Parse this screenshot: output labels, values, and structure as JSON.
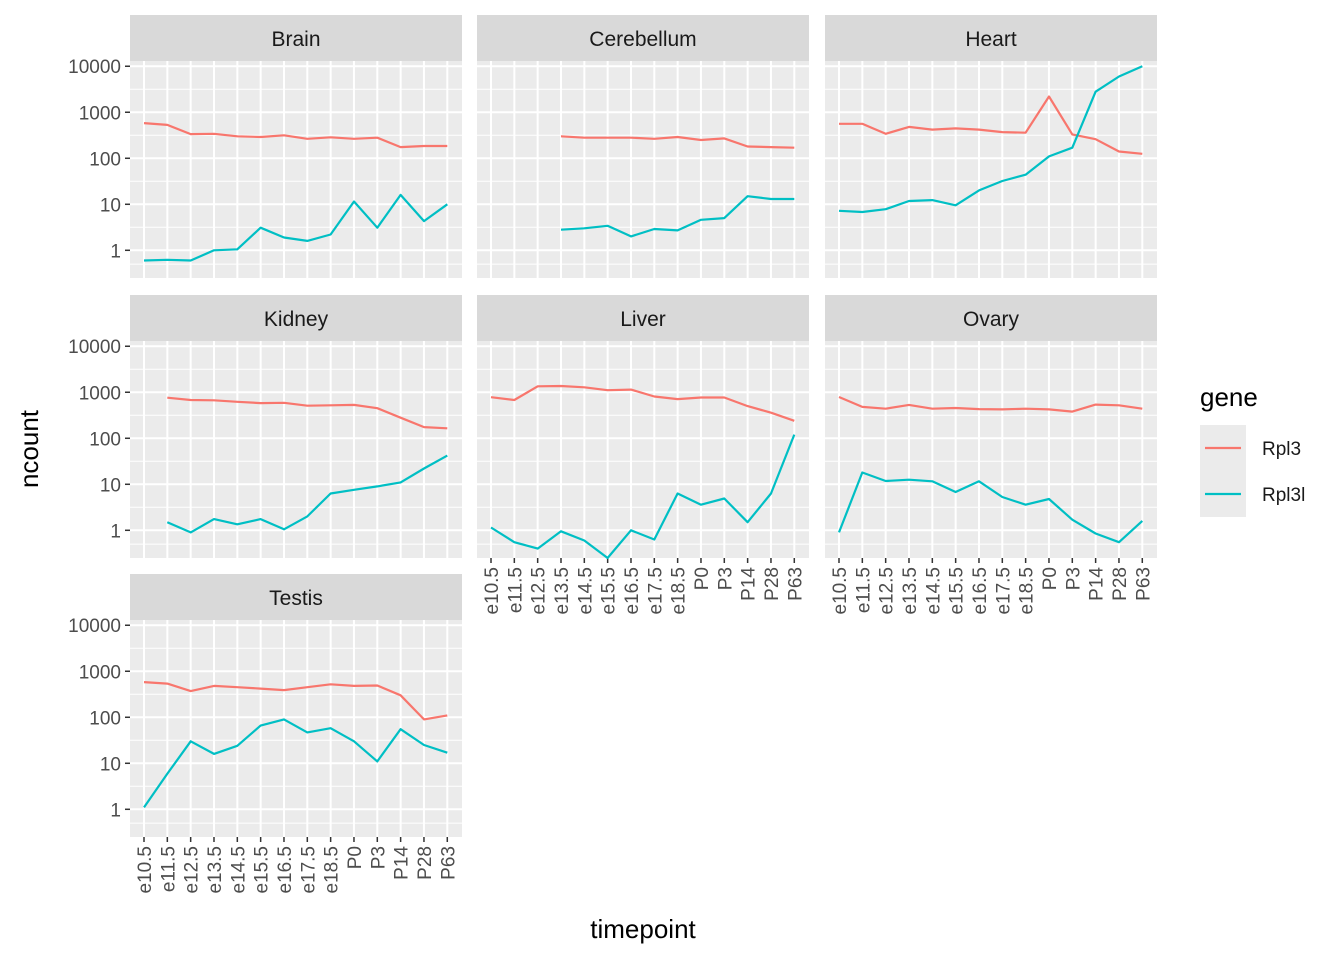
{
  "chart_data": {
    "type": "line",
    "facet_by": "tissue",
    "layout": "3 columns x 3 rows, shared axes",
    "xlabel": "timepoint",
    "ylabel": "ncount",
    "y_scale": "log10",
    "ylim": [
      0.25,
      13000
    ],
    "y_ticks": [
      1,
      10,
      100,
      1000,
      10000
    ],
    "y_tick_labels": [
      "1",
      "10",
      "100",
      "1000",
      "10000"
    ],
    "categories": [
      "e10.5",
      "e11.5",
      "e12.5",
      "e13.5",
      "e14.5",
      "e15.5",
      "e16.5",
      "e17.5",
      "e18.5",
      "P0",
      "P3",
      "P14",
      "P28",
      "P63"
    ],
    "grid": true,
    "legend": {
      "title": "gene",
      "position": "right",
      "entries": [
        {
          "name": "Rpl3",
          "color": "#F8766D"
        },
        {
          "name": "Rpl3l",
          "color": "#00BFC4"
        }
      ]
    },
    "panels": [
      {
        "title": "Brain",
        "series": [
          {
            "name": "Rpl3",
            "values": [
              580,
              530,
              335,
              340,
              300,
              290,
              315,
              265,
              285,
              265,
              280,
              175,
              185,
              185
            ]
          },
          {
            "name": "Rpl3l",
            "values": [
              0.6,
              0.62,
              0.6,
              1,
              1.05,
              3.1,
              1.9,
              1.6,
              2.2,
              11.5,
              3.1,
              16,
              4.3,
              10
            ]
          }
        ]
      },
      {
        "title": "Cerebellum",
        "series": [
          {
            "name": "Rpl3",
            "values": [
              null,
              null,
              null,
              300,
              280,
              280,
              280,
              265,
              290,
              250,
              270,
              180,
              175,
              170
            ]
          },
          {
            "name": "Rpl3l",
            "values": [
              null,
              null,
              null,
              2.8,
              3.0,
              3.4,
              2.0,
              2.9,
              2.7,
              4.6,
              5.0,
              15,
              13,
              13
            ]
          }
        ]
      },
      {
        "title": "Heart",
        "series": [
          {
            "name": "Rpl3",
            "values": [
              560,
              560,
              340,
              480,
              420,
              445,
              420,
              370,
              360,
              2200,
              330,
              260,
              140,
              125
            ]
          },
          {
            "name": "Rpl3l",
            "values": [
              7.2,
              6.8,
              7.8,
              11.8,
              12.3,
              9.5,
              20,
              32,
              44,
              110,
              170,
              2800,
              6000,
              10000
            ]
          }
        ]
      },
      {
        "title": "Kidney",
        "series": [
          {
            "name": "Rpl3",
            "values": [
              null,
              760,
              680,
              670,
              620,
              580,
              590,
              510,
              520,
              530,
              450,
              280,
              175,
              165
            ]
          },
          {
            "name": "Rpl3l",
            "values": [
              null,
              1.5,
              0.9,
              1.75,
              1.35,
              1.75,
              1.05,
              2,
              6.3,
              7.6,
              9,
              11,
              22,
              42
            ]
          }
        ]
      },
      {
        "title": "Liver",
        "series": [
          {
            "name": "Rpl3",
            "values": [
              780,
              680,
              1350,
              1370,
              1280,
              1110,
              1140,
              810,
              710,
              770,
              770,
              500,
              360,
              240
            ]
          },
          {
            "name": "Rpl3l",
            "values": [
              1.15,
              0.55,
              0.4,
              0.95,
              0.6,
              0.25,
              1.0,
              0.63,
              6.3,
              3.6,
              4.9,
              1.5,
              6.3,
              120
            ]
          }
        ]
      },
      {
        "title": "Ovary",
        "series": [
          {
            "name": "Rpl3",
            "values": [
              790,
              480,
              440,
              530,
              440,
              455,
              430,
              425,
              440,
              425,
              380,
              540,
              520,
              440
            ]
          },
          {
            "name": "Rpl3l",
            "values": [
              0.9,
              18,
              11.8,
              12.6,
              11.6,
              6.8,
              11.6,
              5.3,
              3.6,
              4.8,
              1.7,
              0.85,
              0.55,
              1.6
            ]
          }
        ]
      },
      {
        "title": "Testis",
        "series": [
          {
            "name": "Rpl3",
            "values": [
              580,
              540,
              370,
              480,
              450,
              420,
              390,
              450,
              520,
              480,
              490,
              300,
              90,
              110
            ]
          },
          {
            "name": "Rpl3l",
            "values": [
              1.1,
              5.9,
              30,
              16,
              24,
              66,
              90,
              47,
              58,
              30,
              11,
              55,
              25,
              17
            ]
          }
        ]
      }
    ]
  }
}
